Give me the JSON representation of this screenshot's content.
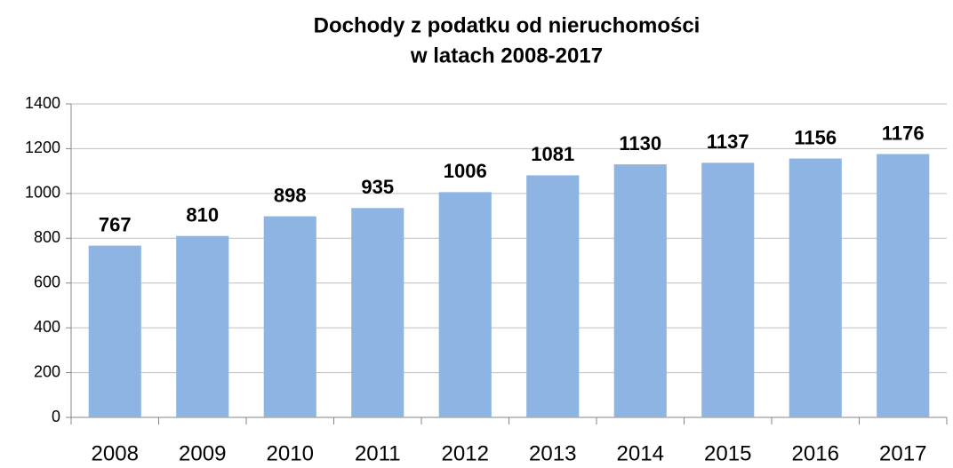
{
  "chart_data": {
    "type": "bar",
    "title": [
      "Dochody z podatku od nieruchomości",
      "w latach 2008-2017"
    ],
    "categories": [
      "2008",
      "2009",
      "2010",
      "2011",
      "2012",
      "2013",
      "2014",
      "2015",
      "2016",
      "2017"
    ],
    "values": [
      767,
      810,
      898,
      935,
      1006,
      1081,
      1130,
      1137,
      1156,
      1176
    ],
    "color": "#8eb4e3",
    "ylim": [
      0,
      1400
    ],
    "yticks": [
      0,
      200,
      400,
      600,
      800,
      1000,
      1200,
      1400
    ],
    "grid": true
  }
}
